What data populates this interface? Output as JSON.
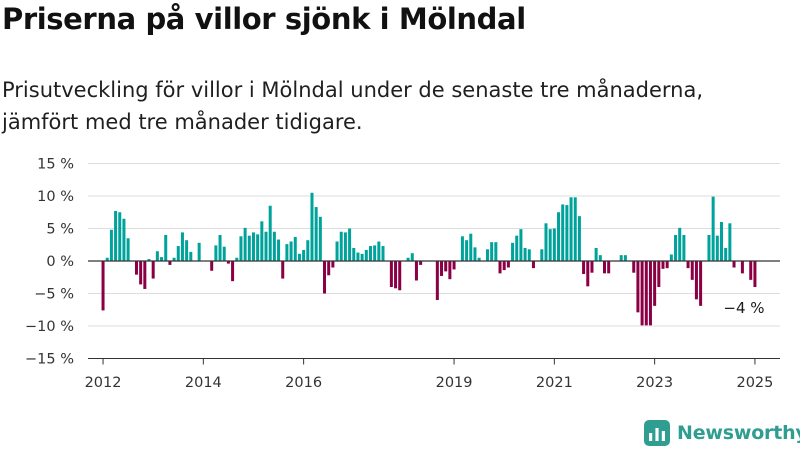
{
  "title": "Priserna på villor sjönk i Mölndal",
  "subtitle": "Prisutveckling för villor i Mölndal under de senaste tre månaderna, jämfört med tre månader tidigare.",
  "brand": {
    "name": "Newsworthy",
    "icon": "bar-chart-logo-icon"
  },
  "colors": {
    "positive": "#00a39b",
    "negative": "#8b0044",
    "grid": "#dddddd",
    "axis": "#333333",
    "brand": "#2f9e91"
  },
  "chart_data": {
    "type": "bar",
    "unit": "%",
    "ylim": [
      -15,
      15
    ],
    "yticks": [
      15,
      10,
      5,
      0,
      -5,
      -10,
      -15
    ],
    "ytick_labels": [
      "15 %",
      "10 %",
      "5 %",
      "0 %",
      "−5 %",
      "−10 %",
      "−15 %"
    ],
    "xlim": [
      2011.7,
      2025.5
    ],
    "xticks": [
      2012,
      2014,
      2016,
      2019,
      2021,
      2023,
      2025
    ],
    "xtick_labels": [
      "2012",
      "2014",
      "2016",
      "2019",
      "2021",
      "2023",
      "2025"
    ],
    "grid": true,
    "last_value_label": "−4 %",
    "x": [
      "2012-01",
      "2012-02",
      "2012-03",
      "2012-04",
      "2012-05",
      "2012-06",
      "2012-07",
      "2012-08",
      "2012-09",
      "2012-10",
      "2012-11",
      "2012-12",
      "2013-01",
      "2013-02",
      "2013-03",
      "2013-04",
      "2013-05",
      "2013-06",
      "2013-07",
      "2013-08",
      "2013-09",
      "2013-10",
      "2013-11",
      "2013-12",
      "2014-01",
      "2014-02",
      "2014-03",
      "2014-04",
      "2014-05",
      "2014-06",
      "2014-07",
      "2014-08",
      "2014-09",
      "2014-10",
      "2014-11",
      "2014-12",
      "2015-01",
      "2015-02",
      "2015-03",
      "2015-04",
      "2015-05",
      "2015-06",
      "2015-07",
      "2015-08",
      "2015-09",
      "2015-10",
      "2015-11",
      "2015-12",
      "2016-01",
      "2016-02",
      "2016-03",
      "2016-04",
      "2016-05",
      "2016-06",
      "2016-07",
      "2016-08",
      "2016-09",
      "2016-10",
      "2016-11",
      "2016-12",
      "2017-01",
      "2017-02",
      "2017-03",
      "2017-04",
      "2017-05",
      "2017-06",
      "2017-07",
      "2017-08",
      "2017-09",
      "2017-10",
      "2017-11",
      "2017-12",
      "2018-01",
      "2018-02",
      "2018-03",
      "2018-04",
      "2018-05",
      "2018-06",
      "2018-07",
      "2018-08",
      "2018-09",
      "2018-10",
      "2018-11",
      "2018-12",
      "2019-01",
      "2019-02",
      "2019-03",
      "2019-04",
      "2019-05",
      "2019-06",
      "2019-07",
      "2019-08",
      "2019-09",
      "2019-10",
      "2019-11",
      "2019-12",
      "2020-01",
      "2020-02",
      "2020-03",
      "2020-04",
      "2020-05",
      "2020-06",
      "2020-07",
      "2020-08",
      "2020-09",
      "2020-10",
      "2020-11",
      "2020-12",
      "2021-01",
      "2021-02",
      "2021-03",
      "2021-04",
      "2021-05",
      "2021-06",
      "2021-07",
      "2021-08",
      "2021-09",
      "2021-10",
      "2021-11",
      "2021-12",
      "2022-01",
      "2022-02",
      "2022-03",
      "2022-04",
      "2022-05",
      "2022-06",
      "2022-07",
      "2022-08",
      "2022-09",
      "2022-10",
      "2022-11",
      "2022-12",
      "2023-01",
      "2023-02",
      "2023-03",
      "2023-04",
      "2023-05",
      "2023-06",
      "2023-07",
      "2023-08",
      "2023-09",
      "2023-10",
      "2023-11",
      "2023-12",
      "2024-01",
      "2024-02",
      "2024-03",
      "2024-04",
      "2024-05",
      "2024-06",
      "2024-07",
      "2024-08",
      "2024-09",
      "2024-10",
      "2024-11",
      "2024-12",
      "2025-01"
    ],
    "values": [
      -7.6,
      0.5,
      4.8,
      7.7,
      7.5,
      6.5,
      3.5,
      null,
      -2.1,
      -3.6,
      -4.3,
      0.3,
      -2.7,
      1.5,
      0.6,
      4.0,
      -0.6,
      0.5,
      2.3,
      4.4,
      3.2,
      1.4,
      null,
      2.8,
      null,
      null,
      -1.5,
      2.4,
      4.0,
      2.2,
      -0.4,
      -3.1,
      0.5,
      3.8,
      5.1,
      3.9,
      4.4,
      4.1,
      6.1,
      4.5,
      8.5,
      4.5,
      3.3,
      -2.7,
      2.6,
      3.0,
      3.7,
      1.1,
      1.7,
      3.2,
      10.5,
      8.3,
      6.8,
      -5.0,
      -2.2,
      -1.0,
      3.0,
      4.5,
      4.4,
      5.0,
      2.0,
      1.3,
      1.1,
      1.7,
      2.3,
      2.4,
      3.0,
      2.3,
      null,
      -4.0,
      -4.2,
      -4.5,
      null,
      0.5,
      1.2,
      -3.0,
      -0.6,
      null,
      null,
      null,
      -6.0,
      -2.3,
      -1.6,
      -2.8,
      -1.3,
      null,
      3.8,
      3.2,
      4.2,
      2.1,
      0.5,
      null,
      1.8,
      2.9,
      2.9,
      -1.9,
      -1.4,
      -1.0,
      2.8,
      3.9,
      4.9,
      2.0,
      1.8,
      -1.1,
      null,
      1.8,
      5.8,
      4.9,
      5.0,
      7.5,
      8.7,
      8.6,
      9.8,
      9.8,
      6.9,
      -2.0,
      -3.9,
      -1.8,
      2.0,
      0.9,
      -1.9,
      -1.9,
      null,
      null,
      0.9,
      0.9,
      null,
      -1.8,
      -7.9,
      -9.9,
      -9.9,
      -9.9,
      -6.9,
      -4.0,
      -1.2,
      -1.1,
      1.0,
      4.0,
      5.1,
      4.0,
      -1.1,
      -2.9,
      -5.9,
      -6.9,
      null,
      4.0,
      9.9,
      3.9,
      6.0,
      2.0,
      5.8,
      -1.0,
      null,
      -1.9,
      null,
      -2.9,
      -4.0
    ]
  }
}
